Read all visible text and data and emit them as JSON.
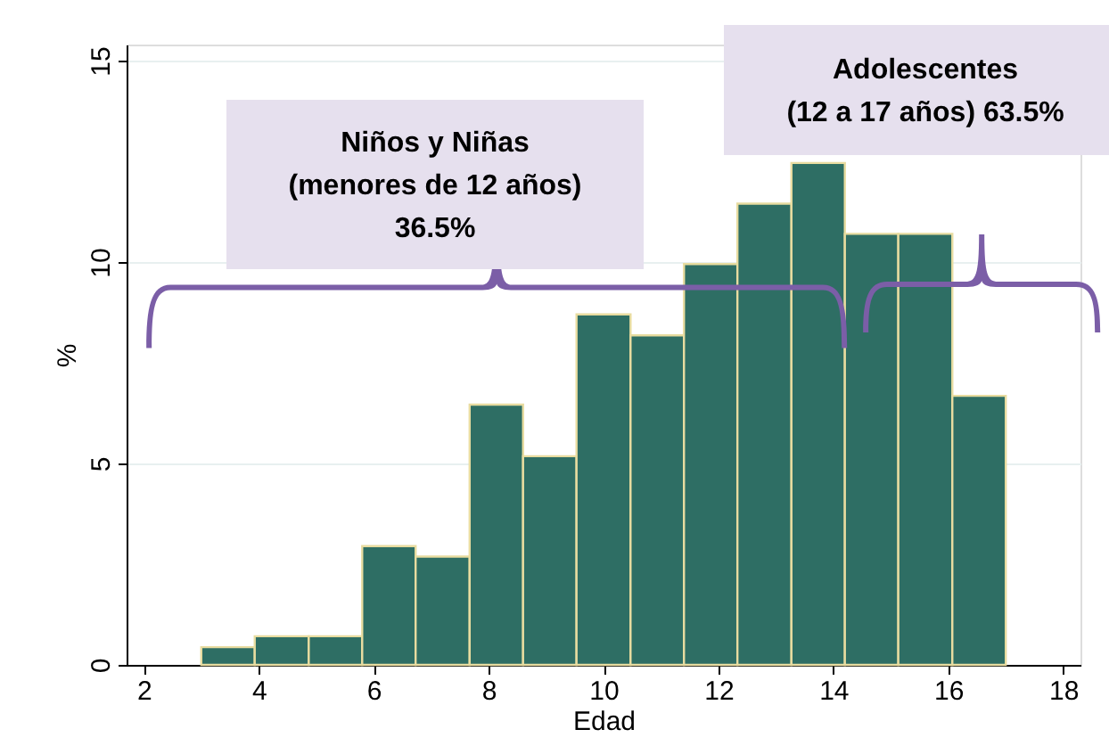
{
  "chart_data": {
    "type": "histogram",
    "xlabel": "Edad",
    "ylabel": "%",
    "bins": [
      3,
      3.93,
      4.87,
      5.8,
      6.73,
      7.67,
      8.6,
      9.53,
      10.47,
      11.4,
      12.33,
      13.27,
      14.2,
      15.13,
      16.07,
      17
    ],
    "values": [
      0.44,
      0.71,
      0.71,
      2.95,
      2.69,
      6.46,
      5.18,
      8.7,
      8.18,
      9.95,
      11.45,
      12.46,
      10.7,
      10.7,
      6.68
    ],
    "color": "#2e6e64",
    "xlim": [
      1.7,
      18.3
    ],
    "xticks": [
      2,
      4,
      6,
      8,
      10,
      12,
      14,
      16,
      18
    ],
    "ylim": [
      0,
      15.4
    ],
    "yticks": [
      0,
      5,
      10,
      15
    ],
    "grid": "y",
    "annotations": [
      "Niños y Niñas\n(menores de 12 años)\n36.5%",
      "Adolescentes\n(12 a 17 años) 63.5%"
    ]
  }
}
